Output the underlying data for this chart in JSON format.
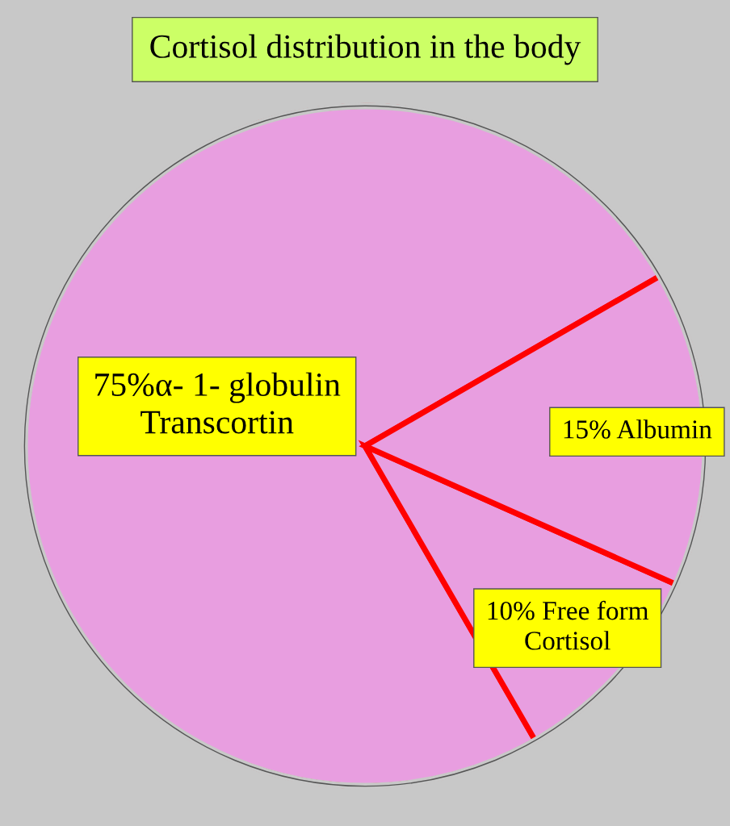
{
  "chart_data": {
    "type": "pie",
    "title": "Cortisol distribution in the body",
    "categories": [
      "75%α- 1- globulin\nTranscortin",
      "10% Free form\nCortisol",
      "15% Albumin"
    ],
    "values": [
      75,
      10,
      15
    ],
    "colors": [
      "#e89ee0",
      "#e89ee0",
      "#e89ee0"
    ]
  }
}
